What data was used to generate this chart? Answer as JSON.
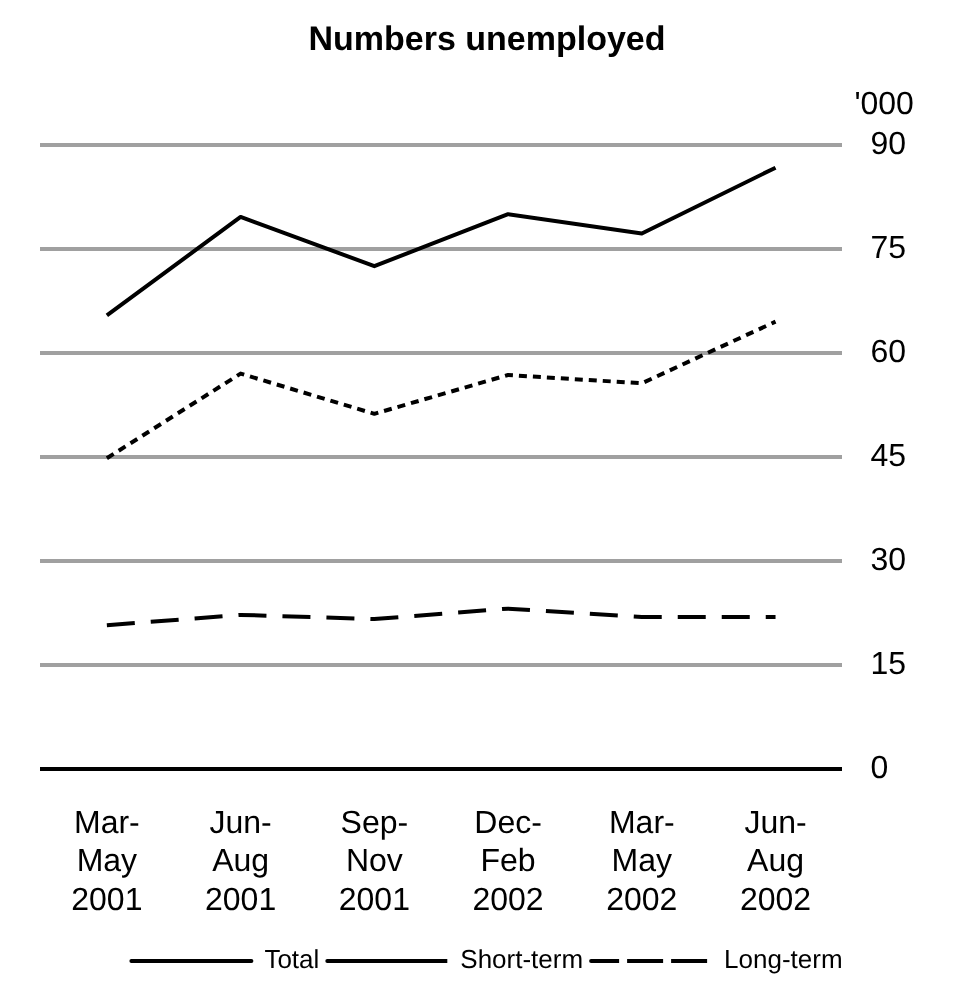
{
  "chart_data": {
    "type": "line",
    "title": "Numbers unemployed",
    "ylabel": "'000",
    "categories": [
      "Mar-\nMay\n2001",
      "Jun-\nAug\n2001",
      "Sep-\nNov\n2001",
      "Dec-\nFeb\n2002",
      "Mar-\nMay\n2002",
      "Jun-\nAug\n2002"
    ],
    "series": [
      {
        "name": "Total",
        "color": "#000000",
        "line_style": "solid",
        "values": [
          65.4,
          79.6,
          72.5,
          80,
          77.2,
          86.7
        ]
      },
      {
        "name": "Short-term",
        "color": "#000000",
        "line_style": "dotted",
        "values": [
          44.8,
          57,
          51.2,
          56.8,
          55.6,
          64.5
        ]
      },
      {
        "name": "Long-term",
        "color": "#000000",
        "line_style": "dashed",
        "values": [
          20.7,
          22.2,
          21.6,
          23.1,
          21.9,
          21.9
        ]
      }
    ],
    "ylim": [
      0,
      90
    ],
    "yticks": [
      0,
      15,
      30,
      45,
      60,
      75,
      90
    ],
    "grid": "y",
    "legend": "bottom",
    "marker": "none"
  }
}
